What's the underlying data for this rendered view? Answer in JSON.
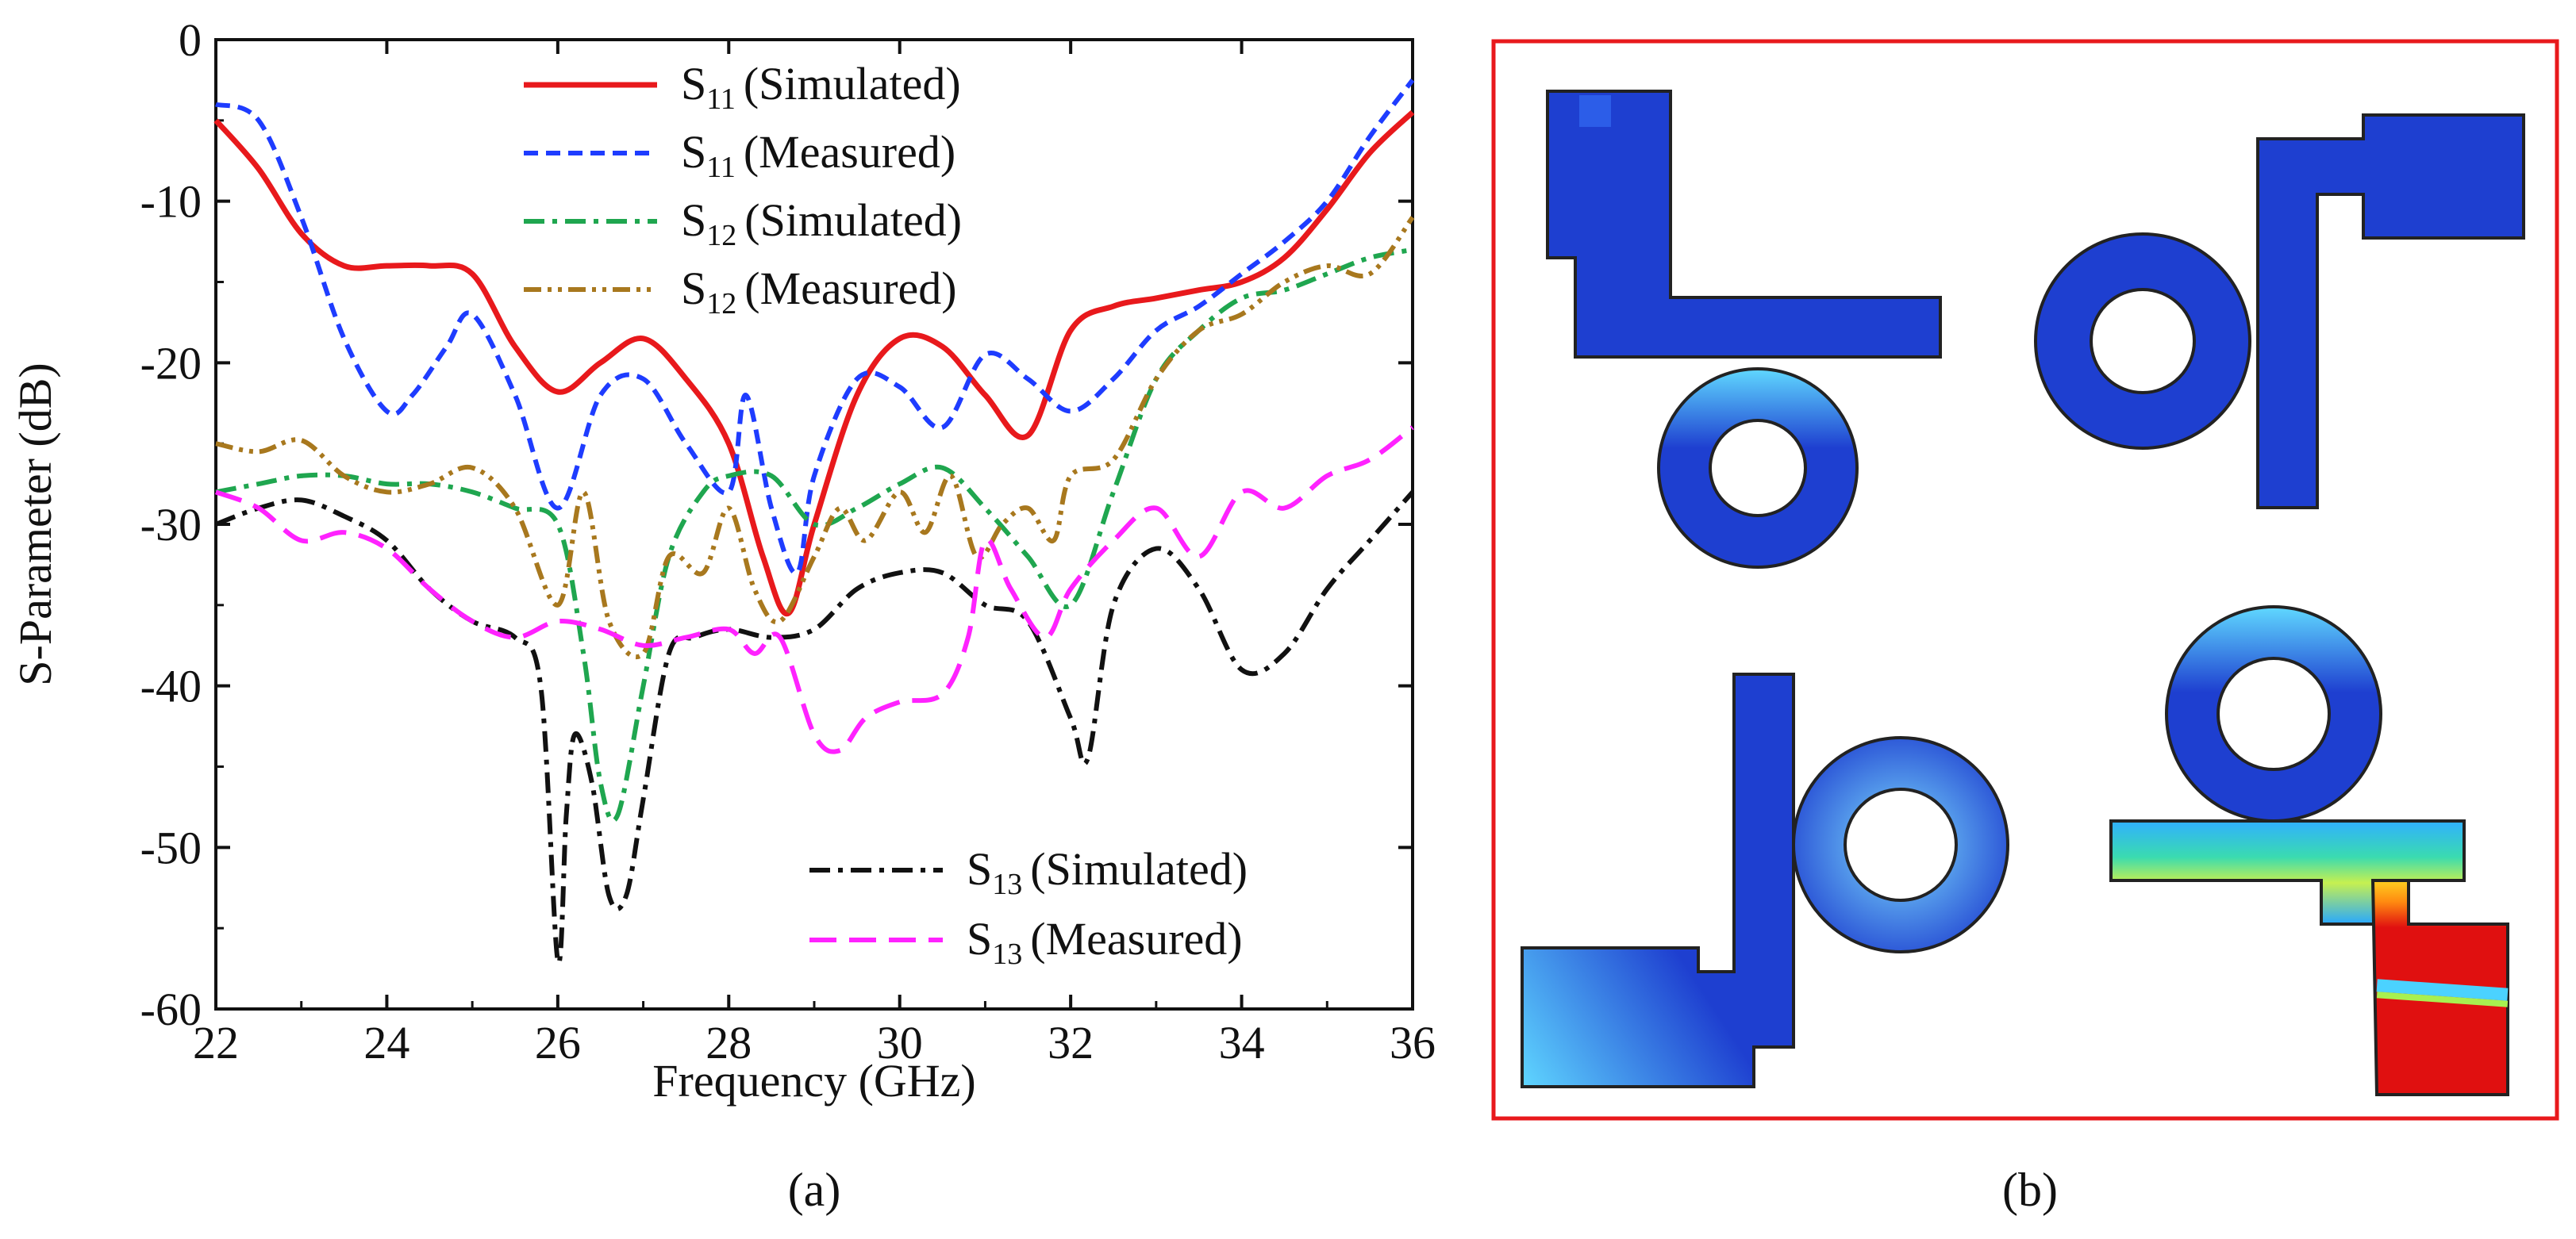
{
  "chart_data": {
    "type": "line",
    "title": "",
    "xlabel": "Frequency (GHz)",
    "ylabel": "S-Parameter (dB)",
    "xlim": [
      22,
      36
    ],
    "ylim": [
      -60,
      0
    ],
    "xticks": [
      22,
      24,
      26,
      28,
      30,
      32,
      34,
      36
    ],
    "yticks": [
      0,
      -10,
      -20,
      -30,
      -40,
      -50,
      -60
    ],
    "series": [
      {
        "key": "s11sim",
        "sym": "S",
        "sub": "11",
        "name": "(Simulated)",
        "color": "#e8191c",
        "dash": "solid",
        "width": 7,
        "x": [
          22,
          22.5,
          23,
          23.5,
          24,
          24.5,
          25,
          25.5,
          26,
          26.5,
          27,
          27.5,
          28,
          28.4,
          28.7,
          29,
          29.5,
          30,
          30.5,
          31,
          31.5,
          32,
          32.5,
          33,
          33.5,
          34,
          34.5,
          35,
          35.5,
          36
        ],
        "y": [
          -5,
          -8,
          -12,
          -14,
          -14,
          -14,
          -14.5,
          -19,
          -21.8,
          -20,
          -18.5,
          -21,
          -25,
          -32,
          -35.5,
          -30,
          -22,
          -18.5,
          -19,
          -22,
          -24.5,
          -18,
          -16.5,
          -16,
          -15.5,
          -15,
          -13.5,
          -10.5,
          -7,
          -4.5
        ]
      },
      {
        "key": "s11meas",
        "sym": "S",
        "sub": "11",
        "name": "(Measured)",
        "color": "#1e3cff",
        "dash": "dash",
        "width": 6,
        "x": [
          22,
          22.5,
          23,
          23.5,
          24,
          24.3,
          24.7,
          25,
          25.5,
          26,
          26.5,
          27,
          27.5,
          28,
          28.2,
          28.5,
          28.8,
          29,
          29.5,
          30,
          30.5,
          31,
          31.5,
          32,
          32.5,
          33,
          33.5,
          34,
          34.5,
          35,
          35.5,
          36
        ],
        "y": [
          -4,
          -5,
          -11,
          -18.5,
          -23,
          -22,
          -19,
          -17,
          -22,
          -29,
          -22,
          -21,
          -25,
          -28,
          -22,
          -29,
          -33,
          -27,
          -21,
          -21.5,
          -24,
          -19.5,
          -21,
          -23,
          -21,
          -18,
          -16.5,
          -14.5,
          -12.5,
          -10,
          -6,
          -2.5
        ]
      },
      {
        "key": "s12sim",
        "sym": "S",
        "sub": "12",
        "name": "(Simulated)",
        "color": "#1fa64f",
        "dash": "dashdot",
        "width": 6,
        "x": [
          22,
          22.5,
          23,
          23.5,
          24,
          24.5,
          25,
          25.5,
          26,
          26.3,
          26.5,
          26.7,
          27,
          27.3,
          27.7,
          28,
          28.5,
          29,
          29.5,
          30,
          30.5,
          31,
          31.5,
          32,
          32.5,
          33,
          33.5,
          34,
          34.5,
          35,
          35.5,
          36
        ],
        "y": [
          -28,
          -27.5,
          -27,
          -27,
          -27.5,
          -27.5,
          -28,
          -29,
          -30,
          -38,
          -46,
          -48,
          -40,
          -32,
          -28,
          -27,
          -27,
          -30,
          -29,
          -27.5,
          -26.5,
          -29,
          -32,
          -35,
          -28,
          -21,
          -18,
          -16,
          -15.5,
          -14.5,
          -13.5,
          -13
        ]
      },
      {
        "key": "s12meas",
        "sym": "S",
        "sub": "12",
        "name": "(Measured)",
        "color": "#a8781e",
        "dash": "dashdotdot",
        "width": 6,
        "x": [
          22,
          22.5,
          23,
          23.5,
          24,
          24.5,
          25,
          25.5,
          26,
          26.3,
          26.6,
          27,
          27.3,
          27.7,
          28,
          28.3,
          28.6,
          29,
          29.3,
          29.6,
          30,
          30.3,
          30.6,
          30.9,
          31.2,
          31.5,
          31.8,
          32,
          32.5,
          33,
          33.5,
          34,
          34.5,
          35,
          35.5,
          36
        ],
        "y": [
          -25,
          -25.5,
          -24.8,
          -27,
          -28,
          -27.5,
          -26.5,
          -29,
          -35,
          -28,
          -36,
          -38,
          -32,
          -33,
          -29,
          -34,
          -36,
          -32,
          -29,
          -31,
          -28,
          -30.5,
          -27,
          -32,
          -30,
          -29,
          -31,
          -27,
          -26,
          -21,
          -18,
          -17,
          -15,
          -14,
          -14.5,
          -11
        ]
      },
      {
        "key": "s13sim",
        "sym": "S",
        "sub": "13",
        "name": "(Simulated)",
        "color": "#111111",
        "dash": "dashdot",
        "width": 6,
        "x": [
          22,
          22.5,
          23,
          23.5,
          24,
          24.5,
          25,
          25.5,
          25.8,
          26,
          26.1,
          26.2,
          26.4,
          26.6,
          26.8,
          27,
          27.3,
          27.6,
          28,
          28.5,
          29,
          29.5,
          30,
          30.5,
          31,
          31.5,
          32,
          32.2,
          32.5,
          33,
          33.5,
          34,
          34.5,
          35,
          35.5,
          36
        ],
        "y": [
          -30,
          -29,
          -28.5,
          -29.5,
          -31,
          -34,
          -36,
          -37,
          -40,
          -57,
          -48,
          -43,
          -46,
          -53,
          -53,
          -47,
          -38,
          -37,
          -36.5,
          -37,
          -36.5,
          -34,
          -33,
          -33,
          -35,
          -36,
          -42,
          -44.5,
          -35,
          -31.5,
          -34,
          -39,
          -38,
          -34,
          -31,
          -28
        ]
      },
      {
        "key": "s13meas",
        "sym": "S",
        "sub": "13",
        "name": "(Measured)",
        "color": "#ff22ff",
        "dash": "longdash",
        "width": 6,
        "x": [
          22,
          22.5,
          23,
          23.5,
          24,
          24.5,
          25,
          25.5,
          26,
          26.5,
          27,
          27.5,
          28,
          28.3,
          28.6,
          29,
          29.3,
          29.6,
          30,
          30.5,
          30.8,
          31,
          31.3,
          31.7,
          32,
          32.5,
          33,
          33.5,
          34,
          34.5,
          35,
          35.5,
          36
        ],
        "y": [
          -28,
          -29,
          -31,
          -30.5,
          -31.5,
          -34,
          -36,
          -37,
          -36,
          -36.5,
          -37.5,
          -37,
          -36.5,
          -38,
          -37,
          -43,
          -44,
          -42,
          -41,
          -40.5,
          -37,
          -31,
          -34,
          -37,
          -34,
          -31,
          -29,
          -32,
          -28,
          -29,
          -27,
          -26,
          -24
        ]
      }
    ]
  },
  "labels": {
    "left": "(a)",
    "right": "(b)"
  },
  "field_images": [
    {
      "id": "top-left",
      "description": "resonator field magnitude (low)"
    },
    {
      "id": "top-right",
      "description": "resonator field magnitude (low)"
    },
    {
      "id": "bottom-left",
      "description": "resonator field magnitude (low)"
    },
    {
      "id": "bottom-right",
      "description": "resonator field magnitude (excited port)"
    }
  ],
  "colors": {
    "frame": "#e8191c",
    "field_low": "#1e3fd0",
    "field_high": "#e01010"
  }
}
